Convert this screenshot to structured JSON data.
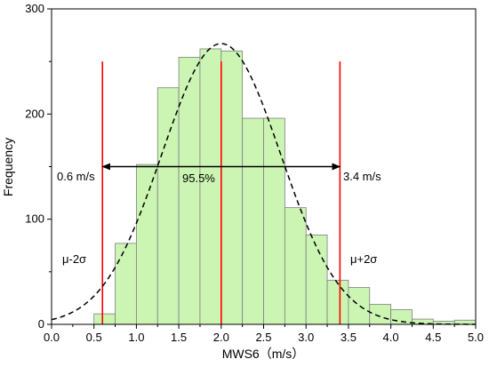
{
  "chart_data": {
    "type": "bar",
    "xlabel": "MWS6（m/s）",
    "ylabel": "Frequency",
    "xlim": [
      0.0,
      5.0
    ],
    "ylim": [
      0,
      300
    ],
    "x_ticks": [
      "0.0",
      "0.5",
      "1.0",
      "1.5",
      "2.0",
      "2.5",
      "3.0",
      "3.5",
      "4.0",
      "4.5",
      "5.0"
    ],
    "y_ticks": [
      "0",
      "100",
      "200",
      "300"
    ],
    "bin_width": 0.25,
    "bins": [
      {
        "x0": 0.5,
        "value": 10
      },
      {
        "x0": 0.75,
        "value": 77
      },
      {
        "x0": 1.0,
        "value": 152
      },
      {
        "x0": 1.25,
        "value": 225
      },
      {
        "x0": 1.5,
        "value": 254
      },
      {
        "x0": 1.75,
        "value": 262
      },
      {
        "x0": 2.0,
        "value": 260
      },
      {
        "x0": 2.25,
        "value": 196
      },
      {
        "x0": 2.5,
        "value": 196
      },
      {
        "x0": 2.75,
        "value": 111
      },
      {
        "x0": 3.0,
        "value": 85
      },
      {
        "x0": 3.25,
        "value": 42
      },
      {
        "x0": 3.5,
        "value": 35
      },
      {
        "x0": 3.75,
        "value": 19
      },
      {
        "x0": 4.0,
        "value": 14
      },
      {
        "x0": 4.25,
        "value": 5
      },
      {
        "x0": 4.5,
        "value": 3
      },
      {
        "x0": 4.75,
        "value": 4
      }
    ],
    "normal_curve": {
      "mean": 2.0,
      "std": 0.7,
      "peak": 267
    },
    "vlines": [
      {
        "x": 0.6,
        "top": 250
      },
      {
        "x": 2.0,
        "top": 250
      },
      {
        "x": 3.4,
        "top": 250
      }
    ],
    "interval_arrow": {
      "x0": 0.6,
      "x1": 3.4,
      "y": 150
    },
    "annotations": {
      "left_value": "0.6 m/s",
      "right_value": "3.4 m/s",
      "percent": "95.5%",
      "minus_sigma": "μ-2σ",
      "plus_sigma": "μ+2σ"
    },
    "colors": {
      "bar_fill": "#ccf5b4",
      "bar_stroke": "#7f7f7f",
      "vline": "#ff0000",
      "curve": "#000000",
      "arrow": "#000000"
    },
    "grid": false
  }
}
